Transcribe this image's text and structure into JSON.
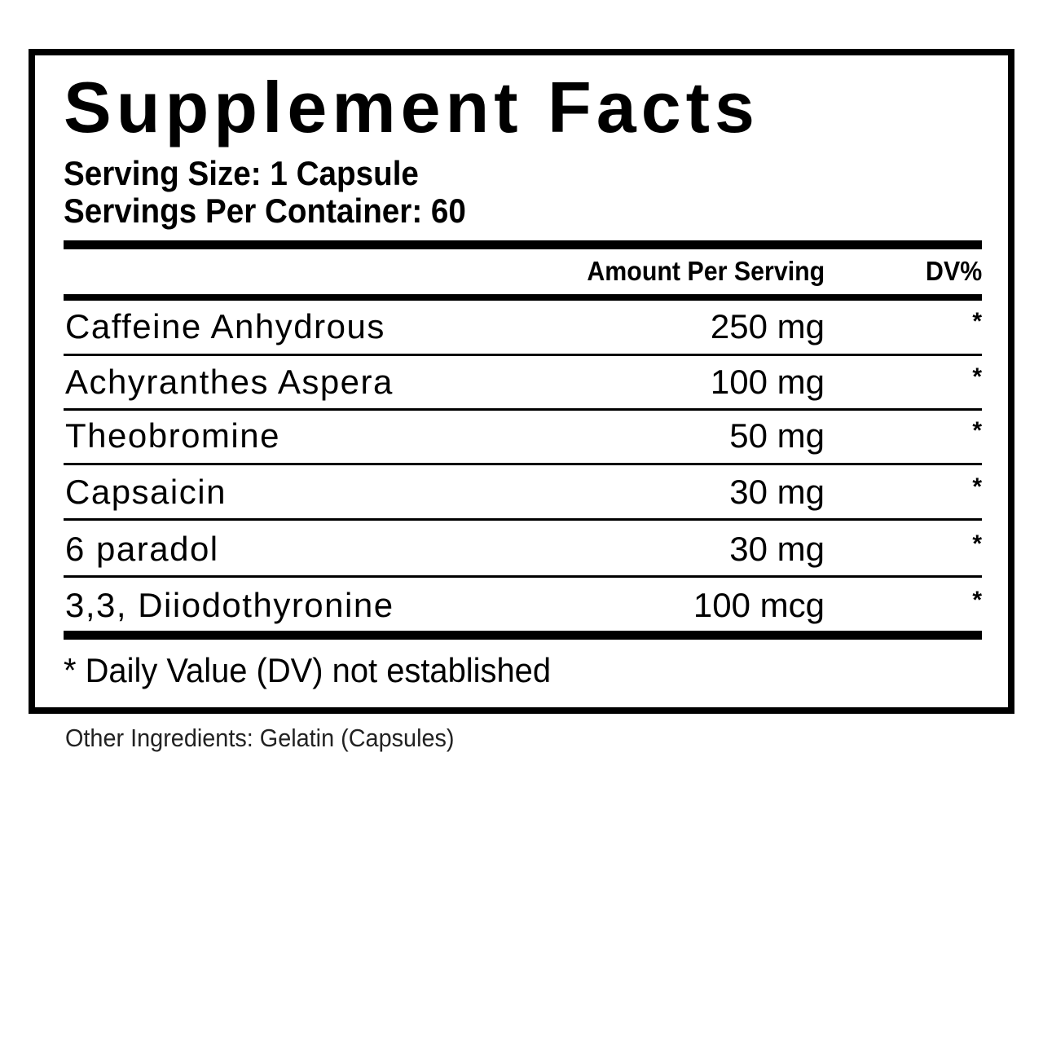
{
  "title": "Supplement Facts",
  "serving_size": "Serving Size: 1 Capsule",
  "servings_per_container": "Servings Per Container: 60",
  "header": {
    "amount": "Amount Per Serving",
    "dv": "DV%"
  },
  "rows": [
    {
      "name": "Caffeine Anhydrous",
      "amount": "250 mg",
      "dv": "*"
    },
    {
      "name": "Achyranthes Aspera",
      "amount": "100 mg",
      "dv": "*"
    },
    {
      "name": "Theobromine",
      "amount": "50 mg",
      "dv": "*"
    },
    {
      "name": "Capsaicin",
      "amount": "30 mg",
      "dv": "*"
    },
    {
      "name": "6 paradol",
      "amount": "30 mg",
      "dv": "*"
    },
    {
      "name": "3,3, Diiodothyronine",
      "amount": "100 mcg",
      "dv": "*"
    }
  ],
  "footnote": "* Daily Value (DV) not established",
  "other_ingredients": "Other Ingredients: Gelatin (Capsules)"
}
